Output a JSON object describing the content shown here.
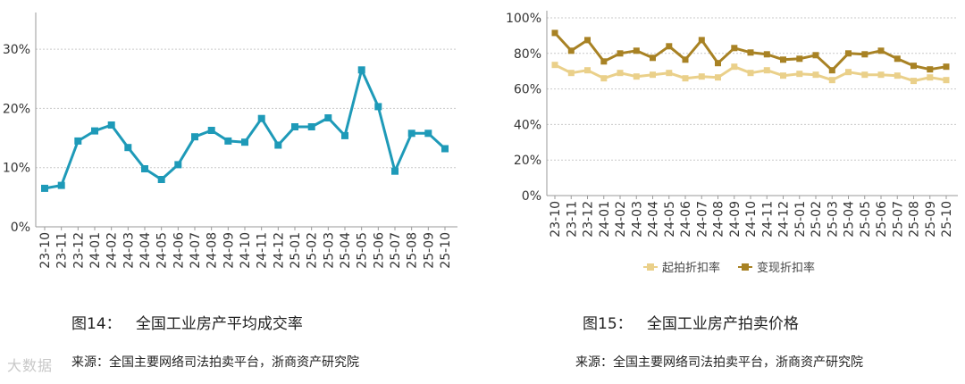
{
  "chart_data": [
    {
      "type": "line",
      "title": "全国工业房产平均成交率",
      "figure_label": "图14：",
      "x": [
        "23-10",
        "23-11",
        "23-12",
        "24-01",
        "24-02",
        "24-03",
        "24-04",
        "24-05",
        "24-06",
        "24-07",
        "24-08",
        "24-09",
        "24-10",
        "24-11",
        "24-12",
        "25-01",
        "25-02",
        "25-03",
        "25-04",
        "25-05",
        "25-06",
        "25-07",
        "25-08",
        "25-09",
        "25-10"
      ],
      "series": [
        {
          "color": "#1e9ab8",
          "values": [
            6.5,
            7.0,
            14.5,
            16.2,
            17.2,
            13.4,
            9.8,
            8.0,
            10.5,
            15.2,
            16.3,
            14.5,
            14.3,
            18.3,
            13.8,
            16.9,
            16.9,
            18.4,
            15.4,
            26.5,
            20.3,
            9.4,
            15.8,
            15.8,
            13.2
          ]
        }
      ],
      "yticks": [
        "0%",
        "10%",
        "20%",
        "30%"
      ],
      "ylim": [
        0,
        35
      ],
      "grid": "horizontal",
      "source": "来源：全国主要网络司法拍卖平台，浙商资产研究院"
    },
    {
      "type": "line",
      "title": "全国工业房产拍卖价格",
      "figure_label": "图15：",
      "x": [
        "23-10",
        "23-11",
        "23-12",
        "24-01",
        "24-02",
        "24-03",
        "24-04",
        "24-05",
        "24-06",
        "24-07",
        "24-08",
        "24-09",
        "24-10",
        "24-11",
        "24-12",
        "25-01",
        "25-02",
        "25-03",
        "25-04",
        "25-05",
        "25-06",
        "25-07",
        "25-08",
        "25-09",
        "25-10"
      ],
      "series": [
        {
          "name": "起拍折扣率",
          "color": "#ead08a",
          "values": [
            73.5,
            69.0,
            70.5,
            66.0,
            69.0,
            67.0,
            68.0,
            69.0,
            66.0,
            67.0,
            66.5,
            72.5,
            69.0,
            70.5,
            67.5,
            68.5,
            68.0,
            65.0,
            69.5,
            68.0,
            68.0,
            67.5,
            64.5,
            66.5,
            65.0
          ]
        },
        {
          "name": "变现折扣率",
          "color": "#a88224",
          "values": [
            91.5,
            81.5,
            87.5,
            75.5,
            80.0,
            81.5,
            77.5,
            84.0,
            76.5,
            87.5,
            74.5,
            83.0,
            80.5,
            79.5,
            76.5,
            77.0,
            79.0,
            70.5,
            80.0,
            79.5,
            81.5,
            77.0,
            73.0,
            71.0,
            72.5
          ]
        }
      ],
      "yticks": [
        "0%",
        "20%",
        "40%",
        "60%",
        "80%",
        "100%"
      ],
      "ylim": [
        0,
        100
      ],
      "grid": "horizontal",
      "legend": "bottom",
      "source": "来源：全国主要网络司法拍卖平台，浙商资产研究院"
    }
  ],
  "watermark": "大数据"
}
